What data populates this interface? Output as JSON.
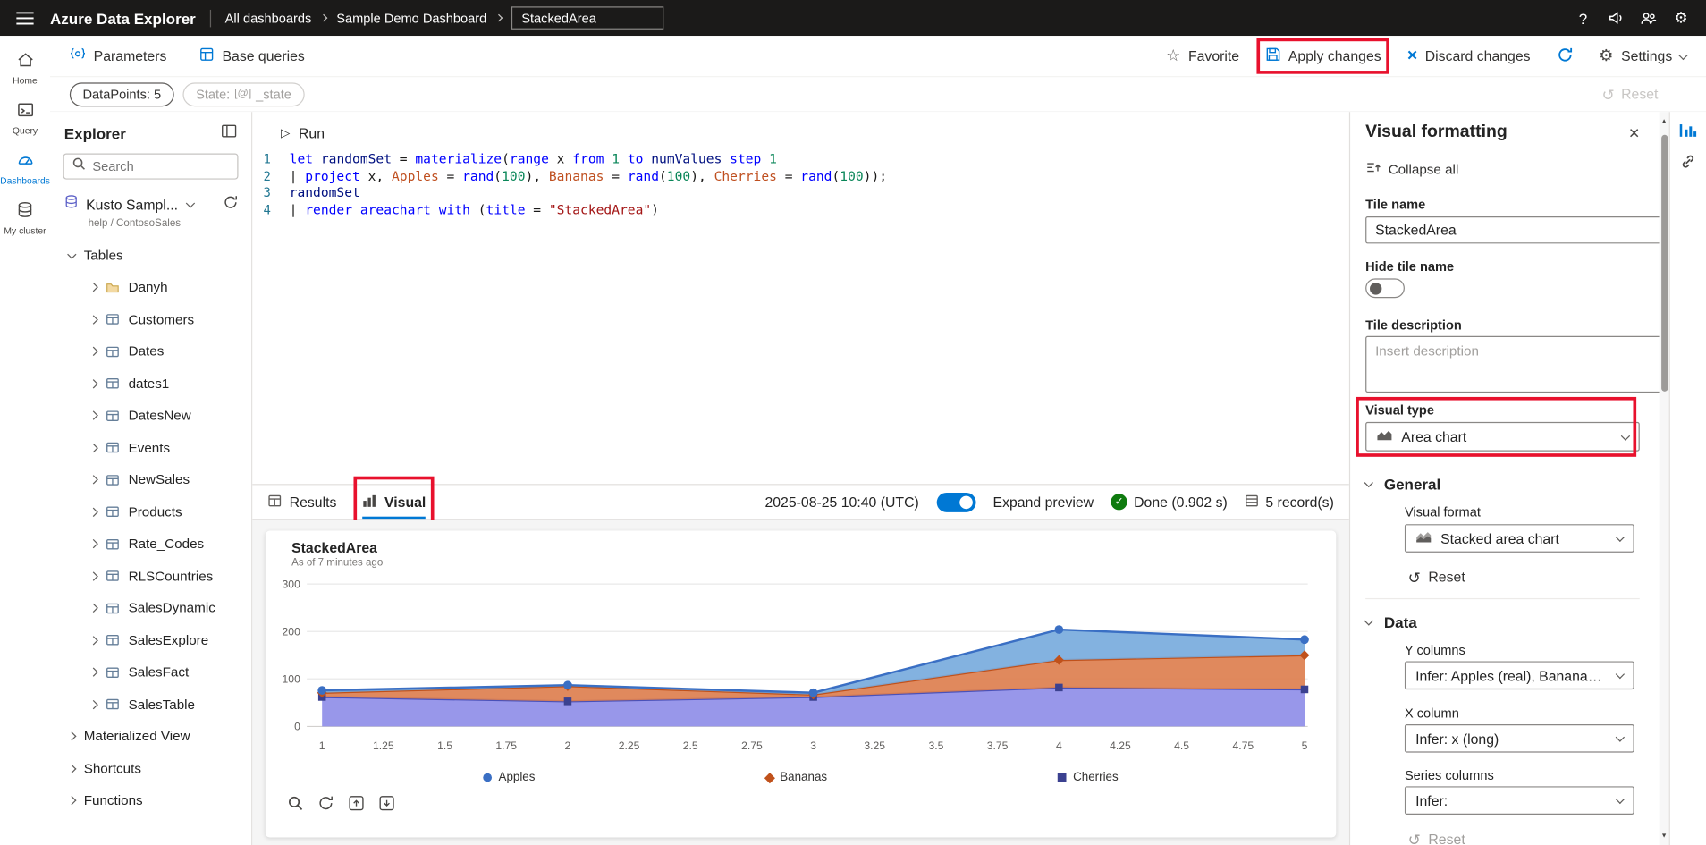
{
  "topbar": {
    "app_title": "Azure Data Explorer",
    "breadcrumb": {
      "level1": "All dashboards",
      "level2": "Sample Demo Dashboard"
    },
    "dashboard_name_input": "StackedArea"
  },
  "commandbar": {
    "parameters_label": "Parameters",
    "base_queries_label": "Base queries",
    "favorite_label": "Favorite",
    "apply_changes_label": "Apply changes",
    "discard_changes_label": "Discard changes",
    "settings_label": "Settings"
  },
  "filters_row": {
    "datapoints_pill": "DataPoints: 5",
    "state_pill": {
      "prefix": "State:",
      "value": "_state"
    },
    "reset_label": "Reset"
  },
  "rail": {
    "items": [
      {
        "label": "Home"
      },
      {
        "label": "Query"
      },
      {
        "label": "Dashboards"
      },
      {
        "label": "My cluster"
      }
    ]
  },
  "explorer": {
    "title": "Explorer",
    "search_placeholder": "Search",
    "cluster_name": "Kusto Sampl...",
    "cluster_sub": "help / ContosoSales",
    "tables_section": "Tables",
    "tables": [
      {
        "name": "Danyh",
        "type": "folder"
      },
      {
        "name": "Customers",
        "type": "table"
      },
      {
        "name": "Dates",
        "type": "table"
      },
      {
        "name": "dates1",
        "type": "table"
      },
      {
        "name": "DatesNew",
        "type": "table"
      },
      {
        "name": "Events",
        "type": "table"
      },
      {
        "name": "NewSales",
        "type": "table"
      },
      {
        "name": "Products",
        "type": "table"
      },
      {
        "name": "Rate_Codes",
        "type": "table"
      },
      {
        "name": "RLSCountries",
        "type": "table"
      },
      {
        "name": "SalesDynamic",
        "type": "table"
      },
      {
        "name": "SalesExplore",
        "type": "table"
      },
      {
        "name": "SalesFact",
        "type": "table"
      },
      {
        "name": "SalesTable",
        "type": "table"
      }
    ],
    "bottom_items": [
      "Materialized View",
      "Shortcuts",
      "Functions"
    ]
  },
  "editor": {
    "run_label": "Run",
    "lines": [
      {
        "num": "1",
        "tokens": [
          {
            "c": "kw",
            "t": "let"
          },
          {
            "c": "pl",
            "t": " "
          },
          {
            "c": "var",
            "t": "randomSet"
          },
          {
            "c": "pl",
            "t": " = "
          },
          {
            "c": "fn",
            "t": "materialize"
          },
          {
            "c": "pl",
            "t": "("
          },
          {
            "c": "kw",
            "t": "range"
          },
          {
            "c": "pl",
            "t": " x "
          },
          {
            "c": "kw",
            "t": "from"
          },
          {
            "c": "pl",
            "t": " "
          },
          {
            "c": "num",
            "t": "1"
          },
          {
            "c": "pl",
            "t": " "
          },
          {
            "c": "kw",
            "t": "to"
          },
          {
            "c": "pl",
            "t": " "
          },
          {
            "c": "var",
            "t": "numValues"
          },
          {
            "c": "pl",
            "t": " "
          },
          {
            "c": "kw",
            "t": "step"
          },
          {
            "c": "pl",
            "t": " "
          },
          {
            "c": "num",
            "t": "1"
          }
        ]
      },
      {
        "num": "2",
        "tokens": [
          {
            "c": "pl",
            "t": "| "
          },
          {
            "c": "kw",
            "t": "project"
          },
          {
            "c": "pl",
            "t": " x, "
          },
          {
            "c": "col",
            "t": "Apples"
          },
          {
            "c": "pl",
            "t": " = "
          },
          {
            "c": "fn",
            "t": "rand"
          },
          {
            "c": "pl",
            "t": "("
          },
          {
            "c": "num",
            "t": "100"
          },
          {
            "c": "pl",
            "t": "), "
          },
          {
            "c": "col",
            "t": "Bananas"
          },
          {
            "c": "pl",
            "t": " = "
          },
          {
            "c": "fn",
            "t": "rand"
          },
          {
            "c": "pl",
            "t": "("
          },
          {
            "c": "num",
            "t": "100"
          },
          {
            "c": "pl",
            "t": "), "
          },
          {
            "c": "col",
            "t": "Cherries"
          },
          {
            "c": "pl",
            "t": " = "
          },
          {
            "c": "fn",
            "t": "rand"
          },
          {
            "c": "pl",
            "t": "("
          },
          {
            "c": "num",
            "t": "100"
          },
          {
            "c": "pl",
            "t": "));"
          }
        ]
      },
      {
        "num": "3",
        "tokens": [
          {
            "c": "var",
            "t": "randomSet"
          }
        ]
      },
      {
        "num": "4",
        "tokens": [
          {
            "c": "pl",
            "t": "| "
          },
          {
            "c": "kw",
            "t": "render"
          },
          {
            "c": "pl",
            "t": " "
          },
          {
            "c": "kw",
            "t": "areachart"
          },
          {
            "c": "pl",
            "t": " "
          },
          {
            "c": "kw",
            "t": "with"
          },
          {
            "c": "pl",
            "t": " ("
          },
          {
            "c": "kw",
            "t": "title"
          },
          {
            "c": "pl",
            "t": " = "
          },
          {
            "c": "str",
            "t": "\"StackedArea\""
          },
          {
            "c": "pl",
            "t": ")"
          }
        ]
      }
    ]
  },
  "results_bar": {
    "results_tab": "Results",
    "visual_tab": "Visual",
    "timestamp": "2025-08-25 10:40 (UTC)",
    "expand_preview_label": "Expand preview",
    "status": "Done (0.902 s)",
    "records": "5 record(s)"
  },
  "tile": {
    "title": "StackedArea",
    "subtitle": "As of 7 minutes ago"
  },
  "chart_data": {
    "type": "area",
    "stacked": true,
    "title": "StackedArea",
    "x": [
      1,
      2,
      3,
      4,
      5
    ],
    "x_tick_labels": [
      "1",
      "1.25",
      "1.5",
      "1.75",
      "2",
      "2.25",
      "2.5",
      "2.75",
      "3",
      "3.25",
      "3.5",
      "3.75",
      "4",
      "4.25",
      "4.5",
      "4.75",
      "5"
    ],
    "y_ticks": [
      0,
      100,
      200,
      300
    ],
    "ylim": [
      0,
      300
    ],
    "grid": true,
    "legend_position": "bottom",
    "legend_order": [
      "Apples",
      "Bananas",
      "Cherries"
    ],
    "series": [
      {
        "name": "Cherries",
        "values": [
          62,
          53,
          62,
          82,
          78
        ],
        "fill": "#8f8ee8",
        "line": "#4a51b8",
        "marker": "square",
        "marker_color": "#3b4190"
      },
      {
        "name": "Bananas",
        "values": [
          9,
          32,
          5,
          58,
          72
        ],
        "fill": "#dd7f4f",
        "line": "#c0511b",
        "marker": "diamond",
        "marker_color": "#c0511b"
      },
      {
        "name": "Apples",
        "values": [
          5,
          2,
          4,
          64,
          33
        ],
        "fill": "#78abdd",
        "line": "#3a6fc4",
        "marker": "circle",
        "marker_color": "#3a6fc4"
      }
    ]
  },
  "visual_panel": {
    "title": "Visual formatting",
    "collapse_all_label": "Collapse all",
    "tile_name_label": "Tile name",
    "tile_name_value": "StackedArea",
    "hide_tile_name_label": "Hide tile name",
    "tile_description_label": "Tile description",
    "tile_description_placeholder": "Insert description",
    "visual_type_label": "Visual type",
    "visual_type_value": "Area chart",
    "general_section": "General",
    "visual_format_label": "Visual format",
    "visual_format_value": "Stacked area chart",
    "reset_label": "Reset",
    "data_section": "Data",
    "y_columns_label": "Y columns",
    "y_columns_value": "Infer: Apples (real), Bananas (real), ...",
    "x_column_label": "X column",
    "x_column_value": "Infer: x (long)",
    "series_columns_label": "Series columns",
    "series_columns_value": "Infer:"
  }
}
